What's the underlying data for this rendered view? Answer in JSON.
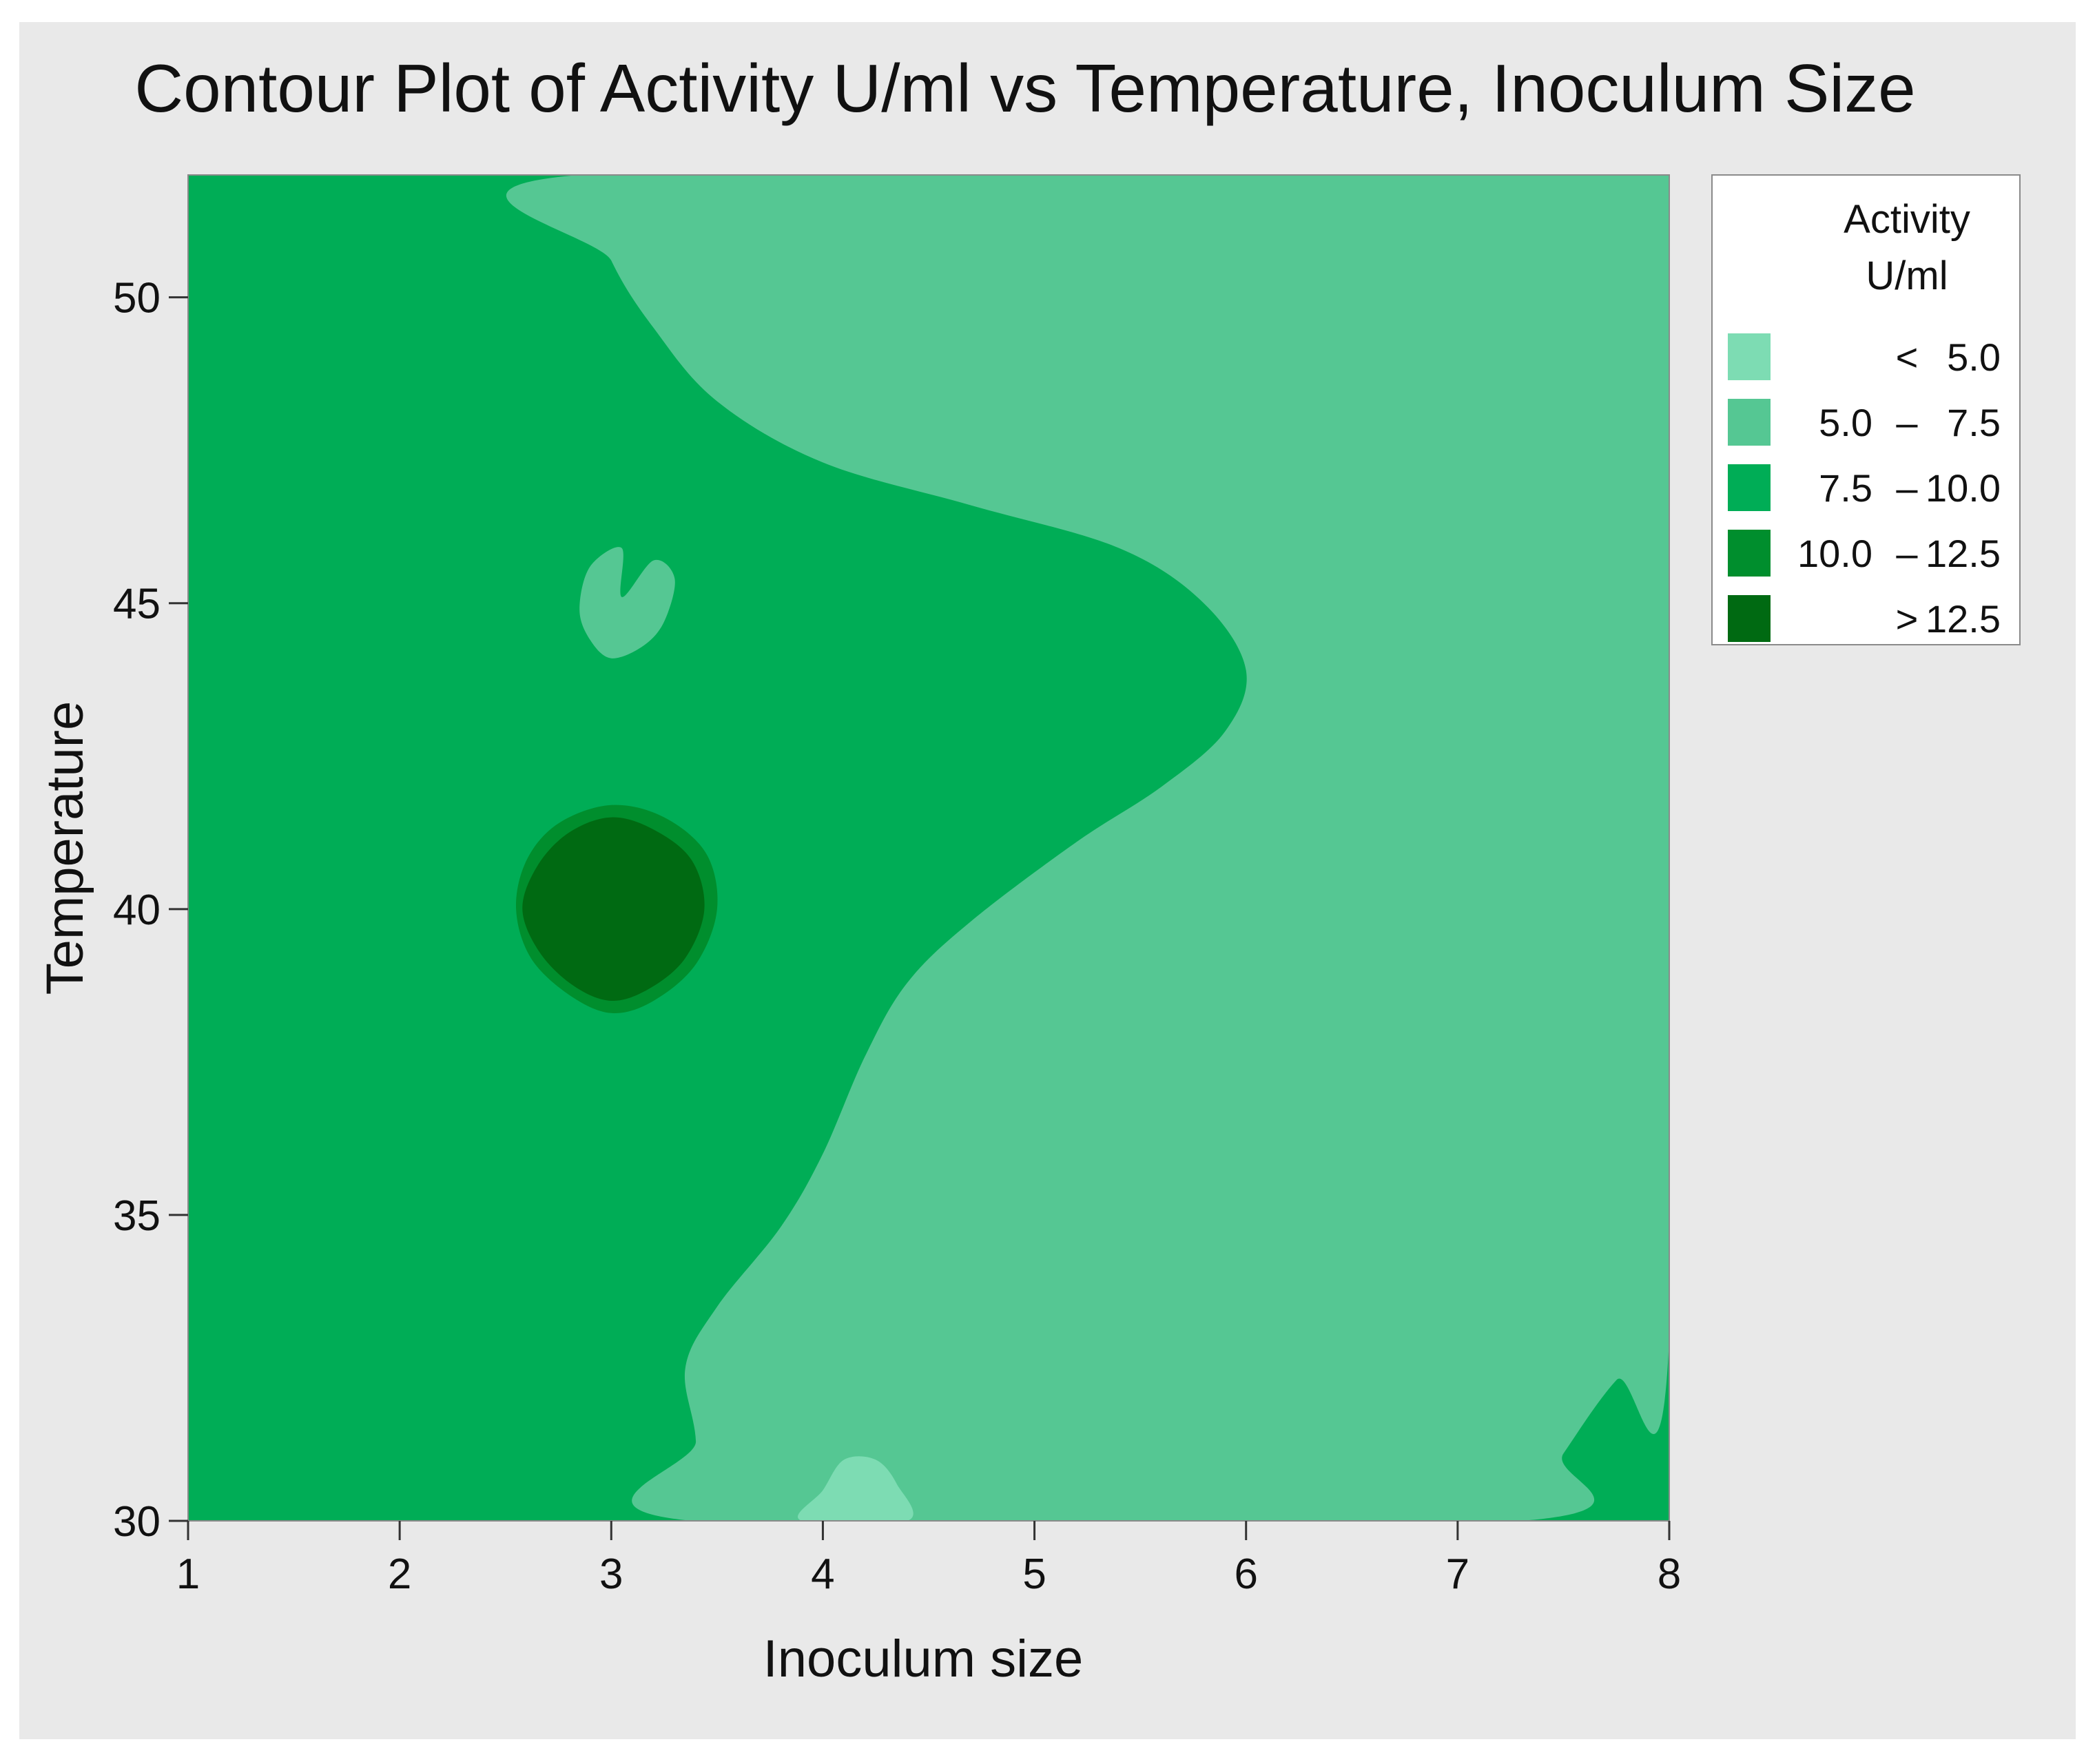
{
  "chart_data": {
    "type": "contour",
    "title": "Contour Plot of Activity U/ml vs Temperature, Inoculum Size",
    "xlabel": "Inoculum size",
    "ylabel": "Temperature",
    "xlim": [
      1,
      8
    ],
    "ylim": [
      30,
      52
    ],
    "x_ticks": [
      1,
      2,
      3,
      4,
      5,
      6,
      7,
      8
    ],
    "y_ticks": [
      30,
      35,
      40,
      45,
      50
    ],
    "grid": false,
    "legend": {
      "placement": "right",
      "title_lines": [
        "Activity",
        "U/ml"
      ],
      "entries": [
        {
          "low": "",
          "sep": "<",
          "high": "5.0",
          "color": "#7ddcb3"
        },
        {
          "low": "5.0",
          "sep": "–",
          "high": "7.5",
          "color": "#55c793"
        },
        {
          "low": "7.5",
          "sep": "–",
          "high": "10.0",
          "color": "#00ad56"
        },
        {
          "low": "10.0",
          "sep": "–",
          "high": "12.5",
          "color": "#008e2d"
        },
        {
          "low": "",
          "sep": ">",
          "high": "12.5",
          "color": "#006a12"
        }
      ]
    },
    "regions": [
      {
        "level": "7.5 – 10.0",
        "color": "#00ad56",
        "polygon": [
          [
            1,
            30
          ],
          [
            8,
            30
          ],
          [
            8,
            52
          ],
          [
            1,
            52
          ]
        ]
      },
      {
        "level": "5.0 – 7.5",
        "color": "#55c793",
        "polygon": [
          [
            2.85,
            52
          ],
          [
            3.0,
            50.6
          ],
          [
            3.2,
            49.5
          ],
          [
            3.5,
            48.3
          ],
          [
            4.0,
            47.3
          ],
          [
            4.7,
            46.6
          ],
          [
            5.4,
            45.9
          ],
          [
            5.8,
            45.0
          ],
          [
            6.0,
            43.9
          ],
          [
            5.9,
            42.9
          ],
          [
            5.6,
            42.0
          ],
          [
            5.2,
            41.1
          ],
          [
            4.7,
            39.8
          ],
          [
            4.4,
            38.8
          ],
          [
            4.2,
            37.6
          ],
          [
            4.0,
            36.0
          ],
          [
            3.8,
            34.8
          ],
          [
            3.5,
            33.5
          ],
          [
            3.35,
            32.5
          ],
          [
            3.4,
            31.3
          ],
          [
            3.38,
            30
          ],
          [
            7.3,
            30
          ],
          [
            7.5,
            31.1
          ],
          [
            7.75,
            32.3
          ],
          [
            8,
            33.0
          ],
          [
            8,
            52
          ]
        ]
      },
      {
        "level": "5.0 – 7.5",
        "color": "#55c793",
        "polygon": [
          [
            3.05,
            45.1
          ],
          [
            3.2,
            45.7
          ],
          [
            3.3,
            45.4
          ],
          [
            3.25,
            44.7
          ],
          [
            3.15,
            44.3
          ],
          [
            3.0,
            44.1
          ],
          [
            2.9,
            44.4
          ],
          [
            2.85,
            44.9
          ],
          [
            2.9,
            45.6
          ],
          [
            3.05,
            45.9
          ]
        ]
      },
      {
        "level": "< 5.0",
        "color": "#7ddcb3",
        "polygon": [
          [
            3.9,
            30
          ],
          [
            4.0,
            30.5
          ],
          [
            4.1,
            31.0
          ],
          [
            4.25,
            31.0
          ],
          [
            4.35,
            30.6
          ],
          [
            4.4,
            30
          ]
        ]
      },
      {
        "level": "10.0 – 12.5",
        "color": "#008e2d",
        "polygon": [
          [
            2.55,
            40
          ],
          [
            2.6,
            40.8
          ],
          [
            2.75,
            41.4
          ],
          [
            3.0,
            41.7
          ],
          [
            3.25,
            41.5
          ],
          [
            3.45,
            40.9
          ],
          [
            3.5,
            40
          ],
          [
            3.4,
            39.1
          ],
          [
            3.2,
            38.5
          ],
          [
            3.0,
            38.3
          ],
          [
            2.8,
            38.6
          ],
          [
            2.62,
            39.2
          ]
        ]
      },
      {
        "level": "> 12.5",
        "color": "#006a12",
        "polygon": [
          [
            2.58,
            40
          ],
          [
            2.65,
            40.7
          ],
          [
            2.8,
            41.25
          ],
          [
            3.0,
            41.5
          ],
          [
            3.2,
            41.3
          ],
          [
            3.38,
            40.8
          ],
          [
            3.44,
            40
          ],
          [
            3.35,
            39.2
          ],
          [
            3.18,
            38.7
          ],
          [
            3.0,
            38.5
          ],
          [
            2.82,
            38.75
          ],
          [
            2.66,
            39.3
          ]
        ]
      }
    ]
  }
}
